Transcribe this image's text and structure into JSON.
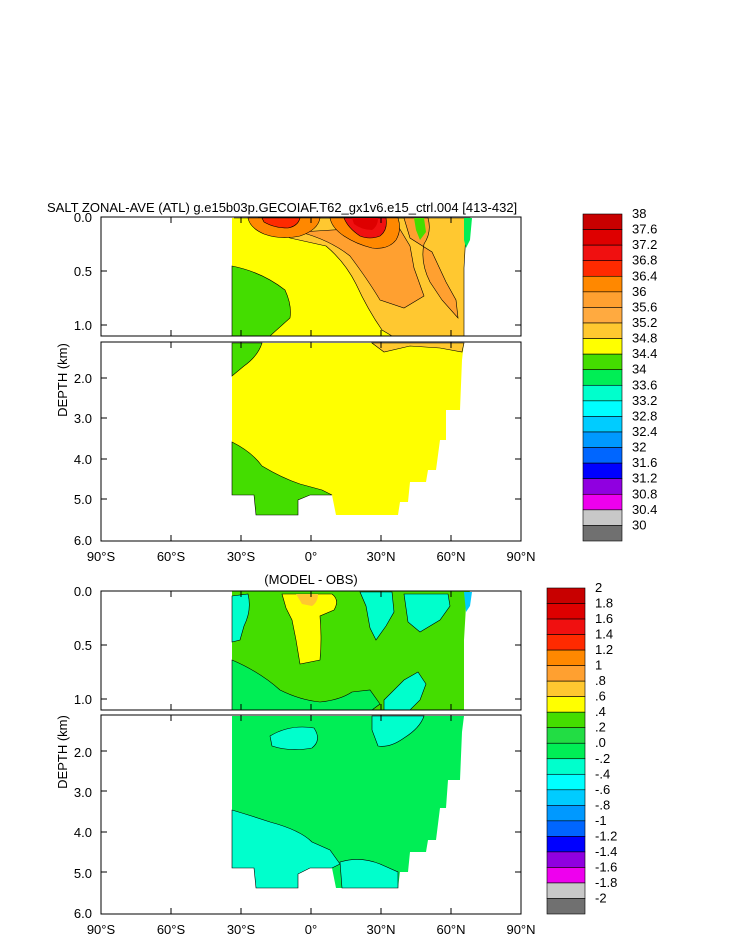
{
  "chart_data": [
    {
      "type": "heatmap",
      "title": "SALT ZONAL-AVE (ATL) g.e15b03p.GECOIAF.T62_gx1v6.e15_ctrl.004 [413-432]",
      "xlabel": "",
      "ylabel": "DEPTH (km)",
      "x_ticks": [
        "90°S",
        "60°S",
        "30°S",
        "0°",
        "30°N",
        "60°N",
        "90°N"
      ],
      "y_ticks_upper": [
        "0.0",
        "0.5",
        "1.0"
      ],
      "y_ticks_lower": [
        "2.0",
        "3.0",
        "4.0",
        "5.0",
        "6.0"
      ],
      "xlim": [
        -90,
        90
      ],
      "ylim_upper": [
        0,
        1.15
      ],
      "ylim_lower": [
        1.15,
        6.0
      ],
      "colorbar_labels": [
        "38",
        "37.6",
        "37.2",
        "36.8",
        "36.4",
        "36",
        "35.6",
        "35.2",
        "34.8",
        "34.4",
        "34",
        "33.6",
        "33.2",
        "32.8",
        "32.4",
        "32",
        "31.6",
        "31.2",
        "30.8",
        "30.4",
        "30"
      ],
      "colorbar_colors": [
        "#c80000",
        "#de0000",
        "#f01010",
        "#ff2a00",
        "#ff8800",
        "#ffa030",
        "#ffaa40",
        "#ffc830",
        "#ffff00",
        "#44dd00",
        "#00ee55",
        "#00ffcc",
        "#00ffff",
        "#00ccff",
        "#0099ff",
        "#0066ff",
        "#0000ff",
        "#9000e0",
        "#ee00ee",
        "#c8c8c8",
        "#707070"
      ]
    },
    {
      "type": "heatmap",
      "title": "(MODEL - OBS)",
      "xlabel": "",
      "ylabel": "DEPTH (km)",
      "x_ticks": [
        "90°S",
        "60°S",
        "30°S",
        "0°",
        "30°N",
        "60°N",
        "90°N"
      ],
      "y_ticks_upper": [
        "0.0",
        "0.5",
        "1.0"
      ],
      "y_ticks_lower": [
        "2.0",
        "3.0",
        "4.0",
        "5.0",
        "6.0"
      ],
      "xlim": [
        -90,
        90
      ],
      "ylim_upper": [
        0,
        1.15
      ],
      "ylim_lower": [
        1.15,
        6.0
      ],
      "colorbar_labels": [
        "2",
        "1.8",
        "1.6",
        "1.4",
        "1.2",
        "1",
        ".8",
        ".6",
        ".4",
        ".2",
        ".0",
        "-.2",
        "-.4",
        "-.6",
        "-.8",
        "-1",
        "-1.2",
        "-1.4",
        "-1.6",
        "-1.8",
        "-2"
      ],
      "colorbar_colors": [
        "#c80000",
        "#de0000",
        "#f01010",
        "#ff2a00",
        "#ff8800",
        "#ffa030",
        "#ffc830",
        "#ffff00",
        "#44dd00",
        "#22dd44",
        "#00ee55",
        "#00ffcc",
        "#00ffff",
        "#00ccff",
        "#0099ff",
        "#0066ff",
        "#0000ff",
        "#9000e0",
        "#ee00ee",
        "#c8c8c8",
        "#707070"
      ]
    }
  ]
}
